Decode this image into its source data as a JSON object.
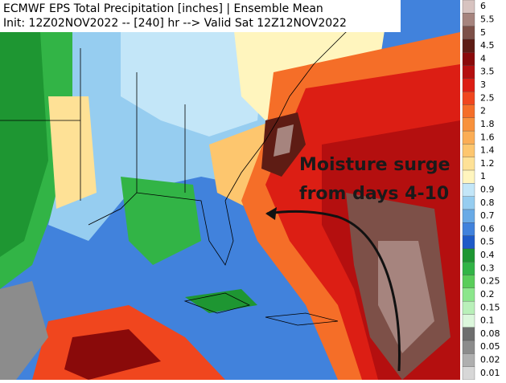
{
  "header": {
    "title": "ECMWF EPS Total Precipitation [inches] | Ensemble Mean",
    "subtitle": "Init: 12Z02NOV2022 -- [240] hr --> Valid Sat 12Z12NOV2022"
  },
  "annotation": {
    "lines": [
      "Moisture surge",
      "from days 4-10"
    ]
  },
  "legend": {
    "levels": [
      {
        "label": "6",
        "color": "#d7c3c0"
      },
      {
        "label": "5.5",
        "color": "#a6847e"
      },
      {
        "label": "5",
        "color": "#7d5048"
      },
      {
        "label": "4.5",
        "color": "#5e1c14"
      },
      {
        "label": "4",
        "color": "#8a0a0a"
      },
      {
        "label": "3.5",
        "color": "#b40f0f"
      },
      {
        "label": "3",
        "color": "#dc1e14"
      },
      {
        "label": "2.5",
        "color": "#f0461e"
      },
      {
        "label": "2",
        "color": "#f56e28"
      },
      {
        "label": "1.8",
        "color": "#f8913c"
      },
      {
        "label": "1.6",
        "color": "#fbad55"
      },
      {
        "label": "1.4",
        "color": "#fdc66e"
      },
      {
        "label": "1.2",
        "color": "#fee196"
      },
      {
        "label": "1",
        "color": "#fff5be"
      },
      {
        "label": "0.9",
        "color": "#c3e6f8"
      },
      {
        "label": "0.8",
        "color": "#96cdf0"
      },
      {
        "label": "0.7",
        "color": "#69aae6"
      },
      {
        "label": "0.6",
        "color": "#4182dc"
      },
      {
        "label": "0.5",
        "color": "#1e5ac8"
      },
      {
        "label": "0.4",
        "color": "#1e9632"
      },
      {
        "label": "0.3",
        "color": "#32b446"
      },
      {
        "label": "0.25",
        "color": "#5acd5a"
      },
      {
        "label": "0.2",
        "color": "#8ce68c"
      },
      {
        "label": "0.15",
        "color": "#b9f0b9"
      },
      {
        "label": "0.1",
        "color": "#dcf7dc"
      },
      {
        "label": "0.08",
        "color": "#6e6e6e"
      },
      {
        "label": "0.05",
        "color": "#8c8c8c"
      },
      {
        "label": "0.02",
        "color": "#afafaf"
      },
      {
        "label": "0.01",
        "color": "#d7d7d7"
      }
    ]
  }
}
